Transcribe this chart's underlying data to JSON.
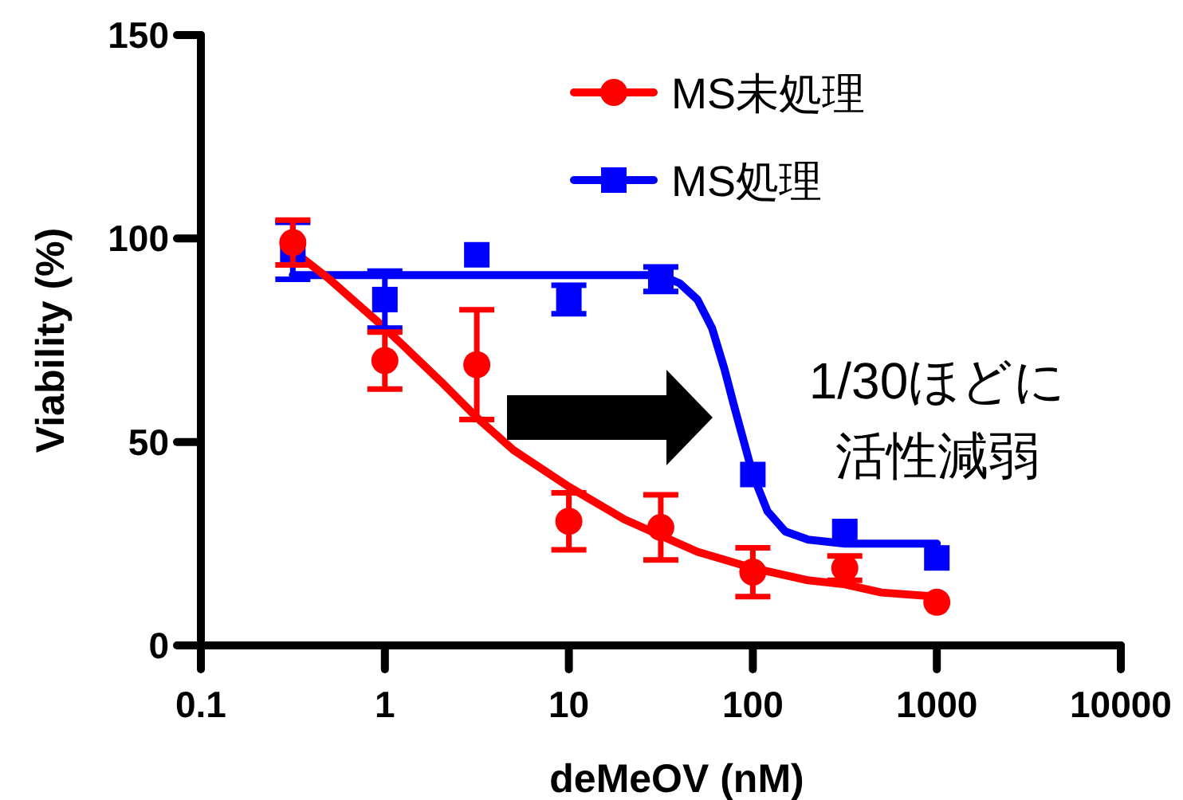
{
  "chart_data": {
    "type": "scatter",
    "xlabel": "deMeOV (nM)",
    "ylabel": "Viability (%)",
    "log": "x",
    "grid": false,
    "legend": "top",
    "xlim": [
      0.1,
      10000
    ],
    "xticks": [
      0.1,
      1,
      10,
      100,
      1000,
      10000
    ],
    "ylim": [
      0,
      150
    ],
    "yticks": [
      0,
      50,
      100,
      150
    ],
    "annotations": [
      "1/30ほどに",
      "活性減弱"
    ],
    "series": [
      {
        "name": "MS未処理",
        "color": "#ff0000",
        "marker": "circle",
        "x": [
          0.316,
          1,
          3.16,
          10,
          31.6,
          100,
          316,
          1000
        ],
        "values": [
          99,
          70,
          69,
          30.5,
          29,
          18,
          19,
          10.6
        ],
        "errors": [
          5.5,
          7,
          13.5,
          7,
          8,
          6,
          3,
          null
        ]
      },
      {
        "name": "MS処理",
        "color": "#0000ff",
        "marker": "square",
        "x": [
          0.316,
          1,
          3.16,
          10,
          31.6,
          100,
          316,
          1000
        ],
        "values": [
          97,
          85,
          96,
          85,
          90,
          42,
          28,
          21.5
        ],
        "errors": [
          7,
          7,
          null,
          3.5,
          3,
          null,
          null,
          null
        ]
      },
      {
        "color": "#ff0000",
        "type": "line",
        "marker": "none",
        "x": [
          0.316,
          0.5,
          1,
          2,
          3.16,
          5,
          10,
          20,
          31.6,
          50,
          100,
          200,
          316,
          500,
          1000
        ],
        "values": [
          97,
          90,
          78,
          65,
          56,
          48,
          39,
          31,
          27,
          23,
          19,
          16,
          15,
          13,
          12
        ]
      },
      {
        "color": "#0000ff",
        "type": "line",
        "marker": "none",
        "x": [
          0.316,
          1,
          10,
          31.6,
          40,
          50,
          60,
          70,
          80,
          100,
          120,
          150,
          200,
          316,
          1000
        ],
        "values": [
          91,
          91,
          91,
          91,
          89,
          85,
          78,
          68,
          58,
          42,
          33,
          28,
          26,
          25,
          25
        ]
      }
    ]
  }
}
